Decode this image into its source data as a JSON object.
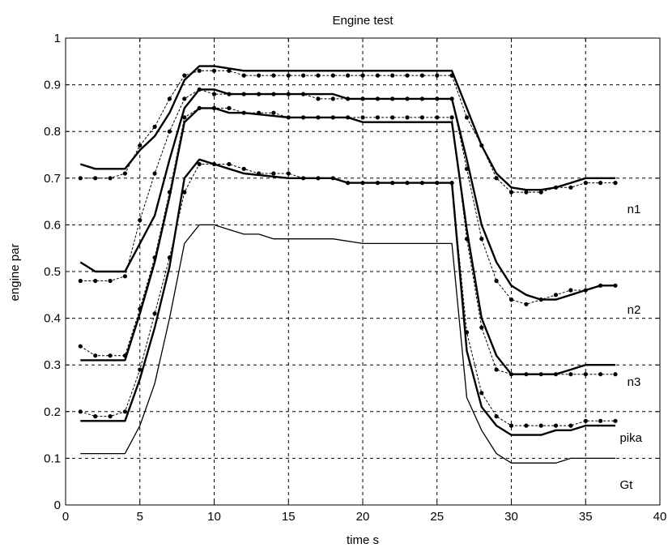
{
  "chart_data": {
    "type": "line",
    "title": "Engine test",
    "xlabel": "time s",
    "ylabel": "engine par",
    "xlim": [
      0,
      40
    ],
    "ylim": [
      0,
      1
    ],
    "xticks": [
      "0",
      "5",
      "10",
      "15",
      "20",
      "25",
      "30",
      "35",
      "40"
    ],
    "yticks": [
      "0",
      "0.1",
      "0.2",
      "0.3",
      "0.4",
      "0.5",
      "0.6",
      "0.7",
      "0.8",
      "0.9",
      "1"
    ],
    "grid": true,
    "annotations": [
      {
        "text": "n1",
        "x": 37.8,
        "y": 0.625
      },
      {
        "text": "n2",
        "x": 37.8,
        "y": 0.41
      },
      {
        "text": "n3",
        "x": 37.8,
        "y": 0.255
      },
      {
        "text": "pika",
        "x": 37.3,
        "y": 0.135
      },
      {
        "text": "Gt",
        "x": 37.3,
        "y": 0.035
      }
    ],
    "series": [
      {
        "style": "bold",
        "x": [
          1,
          2,
          3,
          4,
          5,
          6,
          7,
          8,
          9,
          10,
          11,
          12,
          15,
          18,
          19,
          20,
          25,
          26,
          27,
          28,
          29,
          30,
          31,
          32,
          33,
          34,
          35,
          36,
          37
        ],
        "y": [
          0.73,
          0.72,
          0.72,
          0.72,
          0.76,
          0.79,
          0.84,
          0.91,
          0.94,
          0.94,
          0.935,
          0.93,
          0.93,
          0.93,
          0.93,
          0.93,
          0.93,
          0.93,
          0.85,
          0.77,
          0.71,
          0.68,
          0.675,
          0.675,
          0.68,
          0.69,
          0.7,
          0.7,
          0.7
        ]
      },
      {
        "style": "dotted-markers",
        "x": [
          1,
          2,
          3,
          4,
          5,
          6,
          7,
          8,
          9,
          10,
          11,
          12,
          13,
          14,
          15,
          16,
          17,
          18,
          19,
          20,
          21,
          22,
          23,
          24,
          25,
          26,
          27,
          28,
          29,
          30,
          31,
          32,
          33,
          34,
          35,
          36,
          37
        ],
        "y": [
          0.7,
          0.7,
          0.7,
          0.71,
          0.77,
          0.81,
          0.87,
          0.92,
          0.93,
          0.93,
          0.93,
          0.92,
          0.92,
          0.92,
          0.92,
          0.92,
          0.92,
          0.92,
          0.92,
          0.92,
          0.92,
          0.92,
          0.92,
          0.92,
          0.92,
          0.92,
          0.83,
          0.77,
          0.7,
          0.67,
          0.67,
          0.67,
          0.68,
          0.68,
          0.69,
          0.69,
          0.69
        ]
      },
      {
        "style": "bold",
        "x": [
          1,
          2,
          3,
          4,
          5,
          6,
          7,
          8,
          9,
          10,
          11,
          12,
          15,
          18,
          19,
          20,
          25,
          26,
          27,
          28,
          29,
          30,
          31,
          32,
          33,
          34,
          35,
          36,
          37
        ],
        "y": [
          0.52,
          0.5,
          0.5,
          0.5,
          0.56,
          0.62,
          0.74,
          0.85,
          0.89,
          0.89,
          0.88,
          0.88,
          0.88,
          0.88,
          0.87,
          0.87,
          0.87,
          0.87,
          0.74,
          0.6,
          0.52,
          0.47,
          0.45,
          0.44,
          0.44,
          0.45,
          0.46,
          0.47,
          0.47
        ]
      },
      {
        "style": "dotted-markers",
        "x": [
          1,
          2,
          3,
          4,
          5,
          6,
          7,
          8,
          9,
          10,
          11,
          12,
          13,
          14,
          15,
          16,
          17,
          18,
          19,
          20,
          21,
          22,
          23,
          24,
          25,
          26,
          27,
          28,
          29,
          30,
          31,
          32,
          33,
          34,
          35,
          36,
          37
        ],
        "y": [
          0.48,
          0.48,
          0.48,
          0.49,
          0.61,
          0.71,
          0.8,
          0.87,
          0.89,
          0.88,
          0.88,
          0.88,
          0.88,
          0.88,
          0.88,
          0.88,
          0.87,
          0.87,
          0.87,
          0.87,
          0.87,
          0.87,
          0.87,
          0.87,
          0.87,
          0.87,
          0.72,
          0.57,
          0.48,
          0.44,
          0.43,
          0.44,
          0.45,
          0.46,
          0.46,
          0.47,
          0.47
        ]
      },
      {
        "style": "bold",
        "x": [
          1,
          2,
          3,
          4,
          5,
          6,
          7,
          8,
          9,
          10,
          11,
          12,
          15,
          18,
          19,
          20,
          25,
          26,
          27,
          28,
          29,
          30,
          31,
          32,
          33,
          34,
          35,
          36,
          37
        ],
        "y": [
          0.31,
          0.31,
          0.31,
          0.31,
          0.41,
          0.52,
          0.66,
          0.82,
          0.85,
          0.85,
          0.84,
          0.84,
          0.83,
          0.83,
          0.83,
          0.82,
          0.82,
          0.82,
          0.59,
          0.4,
          0.32,
          0.28,
          0.28,
          0.28,
          0.28,
          0.29,
          0.3,
          0.3,
          0.3
        ]
      },
      {
        "style": "dotted-markers",
        "x": [
          1,
          2,
          3,
          4,
          5,
          6,
          7,
          8,
          9,
          10,
          11,
          12,
          13,
          14,
          15,
          16,
          17,
          18,
          19,
          20,
          21,
          22,
          23,
          24,
          25,
          26,
          27,
          28,
          29,
          30,
          31,
          32,
          33,
          34,
          35,
          36,
          37
        ],
        "y": [
          0.34,
          0.32,
          0.32,
          0.32,
          0.42,
          0.53,
          0.67,
          0.83,
          0.85,
          0.85,
          0.85,
          0.84,
          0.84,
          0.84,
          0.83,
          0.83,
          0.83,
          0.83,
          0.83,
          0.83,
          0.83,
          0.83,
          0.83,
          0.83,
          0.83,
          0.83,
          0.57,
          0.38,
          0.29,
          0.28,
          0.28,
          0.28,
          0.28,
          0.28,
          0.28,
          0.28,
          0.28
        ]
      },
      {
        "style": "bold",
        "x": [
          1,
          2,
          3,
          4,
          5,
          6,
          7,
          8,
          9,
          10,
          11,
          12,
          15,
          18,
          19,
          20,
          25,
          26,
          27,
          28,
          29,
          30,
          31,
          32,
          33,
          34,
          35,
          36,
          37
        ],
        "y": [
          0.18,
          0.18,
          0.18,
          0.18,
          0.27,
          0.38,
          0.51,
          0.7,
          0.74,
          0.73,
          0.72,
          0.71,
          0.7,
          0.7,
          0.69,
          0.69,
          0.69,
          0.69,
          0.33,
          0.21,
          0.17,
          0.15,
          0.15,
          0.15,
          0.16,
          0.16,
          0.17,
          0.17,
          0.17
        ]
      },
      {
        "style": "dotted-markers",
        "x": [
          1,
          2,
          3,
          4,
          5,
          6,
          7,
          8,
          9,
          10,
          11,
          12,
          13,
          14,
          15,
          16,
          17,
          18,
          19,
          20,
          21,
          22,
          23,
          24,
          25,
          26,
          27,
          28,
          29,
          30,
          31,
          32,
          33,
          34,
          35,
          36,
          37
        ],
        "y": [
          0.2,
          0.19,
          0.19,
          0.2,
          0.29,
          0.41,
          0.53,
          0.67,
          0.73,
          0.73,
          0.73,
          0.72,
          0.71,
          0.71,
          0.71,
          0.7,
          0.7,
          0.7,
          0.69,
          0.69,
          0.69,
          0.69,
          0.69,
          0.69,
          0.69,
          0.69,
          0.37,
          0.24,
          0.19,
          0.17,
          0.17,
          0.17,
          0.17,
          0.17,
          0.18,
          0.18,
          0.18
        ]
      },
      {
        "style": "thin",
        "x": [
          1,
          2,
          3,
          4,
          5,
          6,
          7,
          8,
          9,
          10,
          11,
          12,
          13,
          14,
          15,
          18,
          20,
          26,
          27,
          28,
          29,
          30,
          31,
          32,
          33,
          34,
          35,
          36,
          37
        ],
        "y": [
          0.11,
          0.11,
          0.11,
          0.11,
          0.17,
          0.26,
          0.4,
          0.56,
          0.6,
          0.6,
          0.59,
          0.58,
          0.58,
          0.57,
          0.57,
          0.57,
          0.56,
          0.56,
          0.23,
          0.16,
          0.11,
          0.09,
          0.09,
          0.09,
          0.09,
          0.1,
          0.1,
          0.1,
          0.1
        ]
      }
    ]
  }
}
